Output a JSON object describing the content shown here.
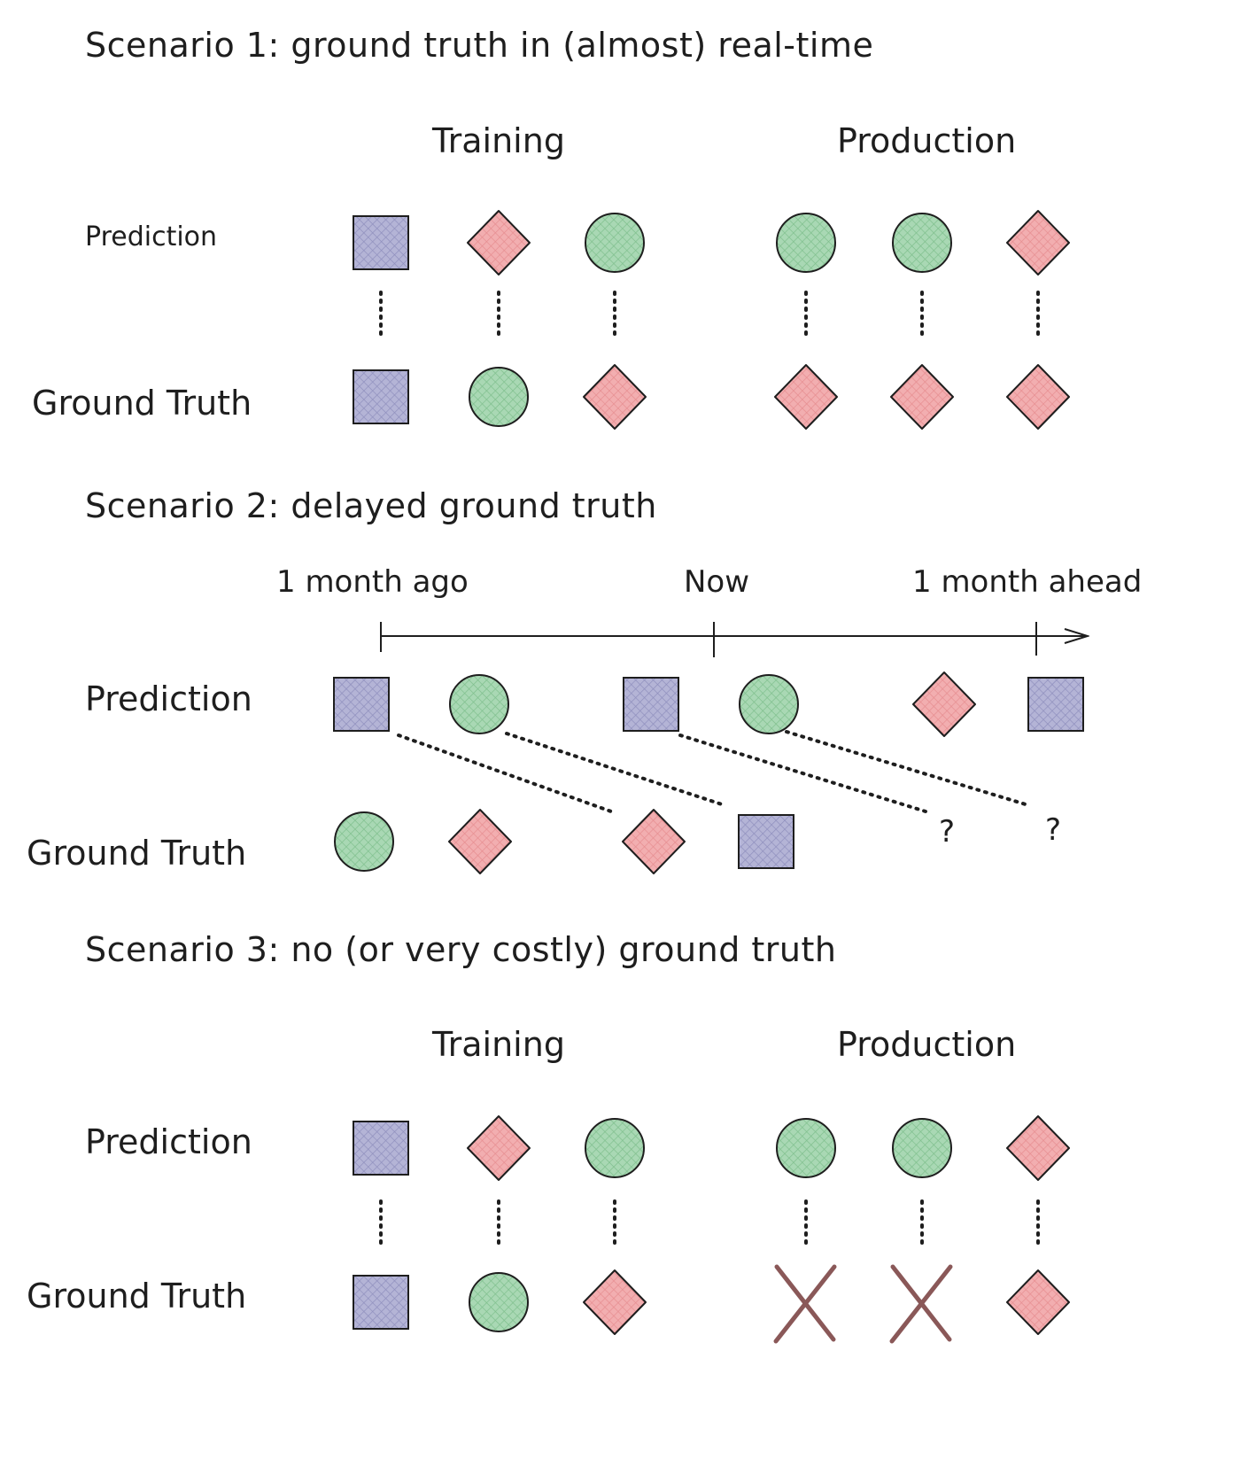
{
  "scenario1": {
    "title": "Scenario 1: ground truth in (almost) real-time",
    "training_label": "Training",
    "production_label": "Production",
    "prediction_label": "Prediction",
    "ground_truth_label": "Ground Truth",
    "training_predictions": [
      "square",
      "diamond",
      "circle"
    ],
    "training_ground_truth": [
      "square",
      "circle",
      "diamond"
    ],
    "production_predictions": [
      "circle",
      "circle",
      "diamond"
    ],
    "production_ground_truth": [
      "diamond",
      "diamond",
      "diamond"
    ]
  },
  "scenario2": {
    "title": "Scenario 2: delayed ground truth",
    "timeline": {
      "start_label": "1 month ago",
      "middle_label": "Now",
      "end_label": "1 month ahead"
    },
    "prediction_label": "Prediction",
    "ground_truth_label": "Ground Truth",
    "predictions": [
      "square",
      "circle",
      "square",
      "circle",
      "diamond",
      "square"
    ],
    "ground_truth": [
      "circle",
      "diamond",
      "diamond",
      "square"
    ],
    "unknown_marks": [
      "?",
      "?"
    ]
  },
  "scenario3": {
    "title": "Scenario 3: no (or very costly) ground truth",
    "training_label": "Training",
    "production_label": "Production",
    "prediction_label": "Prediction",
    "ground_truth_label": "Ground Truth",
    "training_predictions": [
      "square",
      "diamond",
      "circle"
    ],
    "training_ground_truth": [
      "square",
      "circle",
      "diamond"
    ],
    "production_predictions": [
      "circle",
      "circle",
      "diamond"
    ],
    "production_ground_truth": [
      "missing",
      "missing",
      "diamond"
    ]
  },
  "colors": {
    "square_fill": "#b4b4d6",
    "circle_fill": "#a9d8b4",
    "diamond_fill": "#f2aeb0",
    "stroke": "#1e1e1e",
    "missing_x": "#8a5858"
  }
}
